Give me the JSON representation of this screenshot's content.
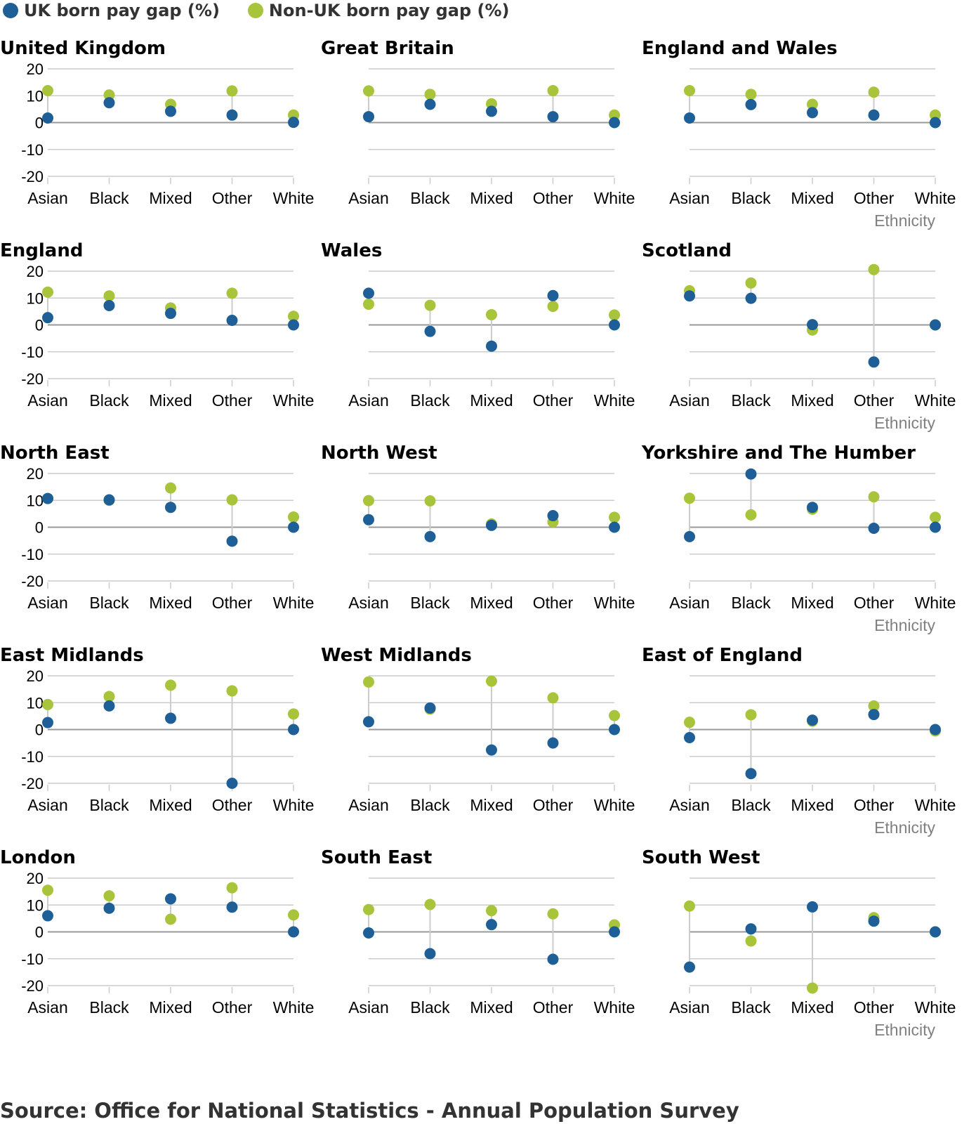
{
  "legend": {
    "uk_label": "UK born pay gap (%)",
    "non_uk_label": "Non-UK born pay gap (%)"
  },
  "colors": {
    "uk": "#1f5f98",
    "non_uk": "#a8c43a",
    "grid": "#cccccc",
    "zero": "#999999",
    "connector": "#cccccc",
    "text": "#000000",
    "axis_title": "#808080"
  },
  "source": "Source: Office for National Statistics - Annual Population Survey",
  "chart_data": {
    "type": "scatter",
    "layout": "small-multiples",
    "categories": [
      "Asian",
      "Black",
      "Mixed",
      "Other",
      "White"
    ],
    "ylim": [
      -20,
      20
    ],
    "yticks": [
      20,
      10,
      0,
      -10,
      -20
    ],
    "xlabel": "Ethnicity",
    "series_names": [
      "UK born pay gap (%)",
      "Non-UK born pay gap (%)"
    ],
    "panels": [
      {
        "title": "United Kingdom",
        "uk": [
          1.7,
          7.4,
          4.2,
          2.8,
          0.1
        ],
        "non_uk": [
          11.9,
          10.3,
          6.8,
          11.8,
          2.8
        ]
      },
      {
        "title": "Great Britain",
        "uk": [
          2.2,
          6.8,
          4.2,
          2.2,
          0.0
        ],
        "non_uk": [
          11.8,
          10.5,
          7.0,
          11.9,
          2.8
        ]
      },
      {
        "title": "England and Wales",
        "uk": [
          1.7,
          6.7,
          3.7,
          2.8,
          0.0
        ],
        "non_uk": [
          11.9,
          10.5,
          6.8,
          11.3,
          2.8
        ]
      },
      {
        "title": "England",
        "uk": [
          2.7,
          7.2,
          4.3,
          1.7,
          0.0
        ],
        "non_uk": [
          12.2,
          10.8,
          6.3,
          11.8,
          3.2
        ]
      },
      {
        "title": "Wales",
        "uk": [
          11.8,
          -2.4,
          -7.9,
          10.9,
          0.0
        ],
        "non_uk": [
          7.7,
          7.3,
          3.8,
          6.9,
          3.7
        ]
      },
      {
        "title": "Scotland",
        "uk": [
          10.8,
          9.9,
          0.1,
          -13.8,
          0.0
        ],
        "non_uk": [
          12.7,
          15.6,
          -1.9,
          20.6,
          0.0
        ]
      },
      {
        "title": "North East",
        "uk": [
          10.7,
          10.2,
          7.4,
          -5.2,
          0.0
        ],
        "non_uk": [
          10.7,
          10.0,
          14.6,
          10.2,
          3.8
        ]
      },
      {
        "title": "North West",
        "uk": [
          2.8,
          -3.5,
          0.7,
          4.3,
          0.0
        ],
        "non_uk": [
          9.9,
          9.8,
          1.2,
          2.0,
          3.7
        ]
      },
      {
        "title": "Yorkshire and The Humber",
        "uk": [
          -3.5,
          19.8,
          7.4,
          -0.4,
          0.0
        ],
        "non_uk": [
          10.8,
          4.6,
          6.7,
          11.3,
          3.7
        ]
      },
      {
        "title": "East Midlands",
        "uk": [
          2.6,
          8.8,
          4.2,
          -20.0,
          0.0
        ],
        "non_uk": [
          9.3,
          12.3,
          16.5,
          14.4,
          5.8
        ]
      },
      {
        "title": "West Midlands",
        "uk": [
          2.9,
          8.0,
          -7.6,
          -5.0,
          0.0
        ],
        "non_uk": [
          17.7,
          7.6,
          18.0,
          11.8,
          5.2
        ]
      },
      {
        "title": "East of England",
        "uk": [
          -3.0,
          -16.4,
          3.5,
          5.6,
          0.0
        ],
        "non_uk": [
          2.7,
          5.5,
          3.1,
          8.8,
          -0.5
        ]
      },
      {
        "title": "London",
        "uk": [
          6.0,
          8.8,
          12.3,
          9.2,
          0.0
        ],
        "non_uk": [
          15.5,
          13.4,
          4.7,
          16.4,
          6.3
        ]
      },
      {
        "title": "South East",
        "uk": [
          -0.4,
          -8.1,
          2.7,
          -10.2,
          0.0
        ],
        "non_uk": [
          8.3,
          10.2,
          7.9,
          6.7,
          2.6
        ]
      },
      {
        "title": "South West",
        "uk": [
          -13.1,
          1.1,
          9.3,
          4.0,
          0.0
        ],
        "non_uk": [
          9.6,
          -3.4,
          -20.9,
          5.3,
          0.0
        ]
      }
    ]
  }
}
